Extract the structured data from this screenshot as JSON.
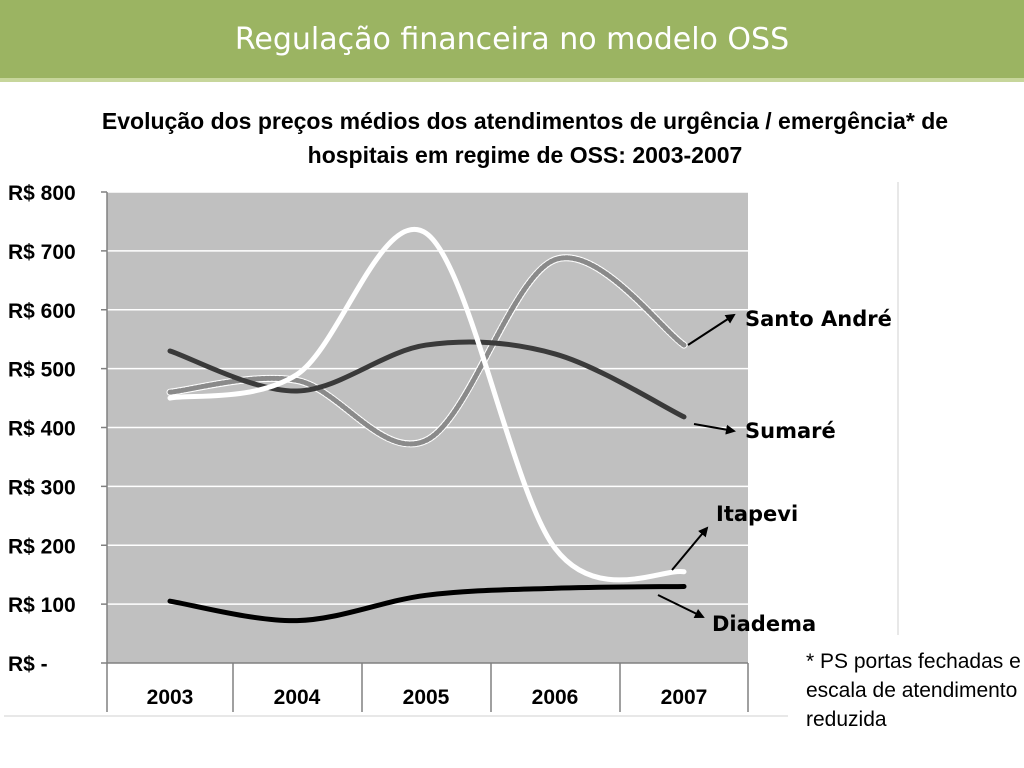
{
  "header": {
    "title": "Regulação financeira no modelo OSS"
  },
  "chart_title": "Evolução dos preços médios dos atendimentos de urgência / emergência* de hospitais em regime de OSS: 2003-2007",
  "footnote": "* PS portas fechadas e escala de atendimento reduzida",
  "colors": {
    "header": "#9bb462",
    "plot_background": "#c0c0c0",
    "gridline": "#ffffff",
    "santo_andre": "#8a8a8a",
    "sumare": "#3a3a3a",
    "itapevi": "#ffffff",
    "diadema": "#000000"
  },
  "chart_data": {
    "type": "line",
    "title": "Evolução dos preços médios dos atendimentos de urgência / emergência* de hospitais em regime de OSS: 2003-2007",
    "categories": [
      "2003",
      "2004",
      "2005",
      "2006",
      "2007"
    ],
    "yticks": [
      "R$ 800",
      "R$ 700",
      "R$ 600",
      "R$ 500",
      "R$ 400",
      "R$ 300",
      "R$ 200",
      "R$ 100",
      "R$ -"
    ],
    "ylim": [
      0,
      800
    ],
    "grid": true,
    "series": [
      {
        "name": "Santo André",
        "values": [
          460,
          480,
          378,
          685,
          540
        ]
      },
      {
        "name": "Sumaré",
        "values": [
          530,
          462,
          540,
          525,
          418
        ]
      },
      {
        "name": "Itapevi",
        "values": [
          450,
          490,
          730,
          195,
          155
        ]
      },
      {
        "name": "Diadema",
        "values": [
          105,
          72,
          115,
          127,
          130
        ]
      }
    ],
    "annotations": [
      "Santo André",
      "Sumaré",
      "Itapevi",
      "Diadema"
    ]
  }
}
